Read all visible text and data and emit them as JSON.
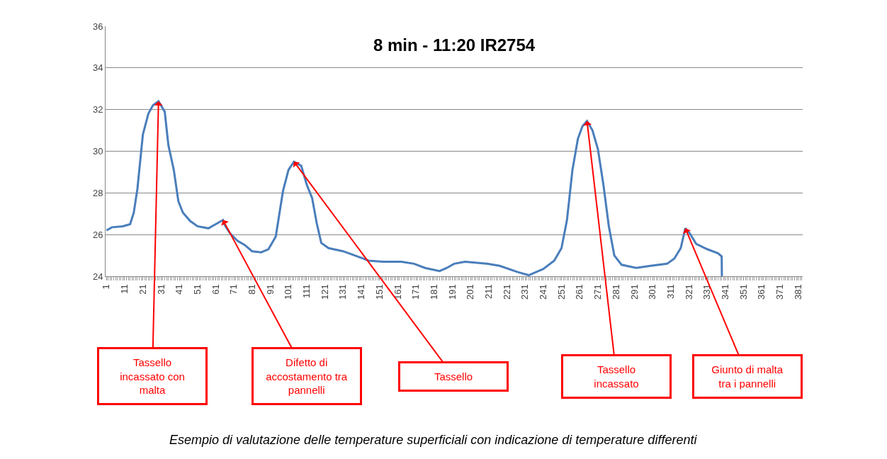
{
  "chart_data": {
    "type": "line",
    "title": "8 min - 11:20 IR2754",
    "x": [
      1,
      4,
      10,
      14,
      16,
      18,
      21,
      24,
      26.5,
      29.6,
      33,
      35,
      38,
      40.5,
      43,
      47,
      51,
      57,
      61,
      65,
      66,
      69,
      73,
      77,
      81,
      86,
      90,
      94,
      98,
      101,
      104,
      108,
      111,
      114,
      116.5,
      119,
      123,
      131,
      139,
      145,
      153,
      163,
      170,
      176,
      184,
      188,
      192,
      198,
      210,
      217,
      227,
      233,
      241,
      247,
      251,
      254,
      257,
      260,
      262.5,
      265,
      268,
      271,
      274,
      277,
      280,
      284,
      292,
      300,
      309,
      313,
      316.5,
      319,
      321.5,
      325,
      331,
      337,
      339,
      339.1
    ],
    "series": [
      {
        "color": "#4a7ebb",
        "values": [
          26.2,
          26.35,
          26.4,
          26.5,
          27.05,
          28.2,
          30.8,
          31.8,
          32.2,
          32.4,
          31.9,
          30.3,
          29.1,
          27.6,
          27.05,
          26.65,
          26.4,
          26.3,
          26.5,
          26.7,
          26.45,
          26.05,
          25.7,
          25.5,
          25.2,
          25.15,
          25.3,
          25.9,
          28.1,
          29.1,
          29.5,
          29.3,
          28.4,
          27.75,
          26.55,
          25.6,
          25.35,
          25.2,
          24.95,
          24.75,
          24.7,
          24.7,
          24.6,
          24.4,
          24.25,
          24.4,
          24.6,
          24.7,
          24.6,
          24.5,
          24.2,
          24.05,
          24.35,
          24.75,
          25.35,
          26.7,
          29.1,
          30.6,
          31.2,
          31.45,
          31.0,
          30.1,
          28.4,
          26.4,
          25.0,
          24.55,
          24.4,
          24.5,
          24.6,
          24.85,
          25.35,
          26.3,
          26.05,
          25.55,
          25.3,
          25.1,
          24.95,
          24.0
        ]
      }
    ],
    "xlim": [
      0.5,
      383.5
    ],
    "xticks": [
      1,
      11,
      21,
      31,
      41,
      51,
      61,
      71,
      81,
      91,
      101,
      111,
      121,
      131,
      141,
      151,
      161,
      171,
      181,
      191,
      201,
      211,
      221,
      231,
      241,
      251,
      261,
      271,
      281,
      291,
      301,
      311,
      321,
      331,
      341,
      351,
      361,
      371,
      381
    ],
    "ylim": [
      24,
      36
    ],
    "yticks": [
      24,
      26,
      28,
      30,
      32,
      34,
      36
    ],
    "grid": "y",
    "marker": "none",
    "line_style": "solid",
    "annotations": [
      {
        "text": "Tassello incassato con malta",
        "x": 29.6,
        "y": 32.4
      },
      {
        "text": "Difetto di accostamento tra pannelli",
        "x": 65,
        "y": 26.7
      },
      {
        "text": "Tassello",
        "x": 104,
        "y": 29.5
      },
      {
        "text": "Tassello incassato",
        "x": 265,
        "y": 31.45
      },
      {
        "text": "Giunto di malta tra i pannelli",
        "x": 319,
        "y": 26.3
      },
      "Esempio di valutazione delle temperature superficiali con indicazione di temperature differenti"
    ]
  }
}
